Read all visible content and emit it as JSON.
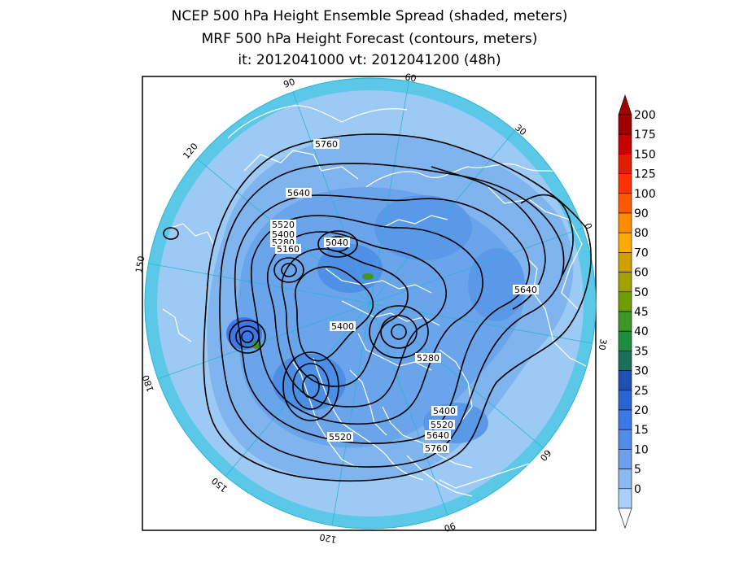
{
  "titles": {
    "line1": "NCEP 500 hPa Height Ensemble Spread (shaded, meters)",
    "line2": "MRF 500 hPa Height Forecast (contours, meters)",
    "line3": "it: 2012041000      vt: 2012041200 (48h)"
  },
  "longitude_labels": [
    "60",
    "30",
    "0",
    "30",
    "60",
    "90",
    "120",
    "150",
    "180",
    "150",
    "120",
    "90"
  ],
  "contour_labels": [
    "5760",
    "5640",
    "5520",
    "5400",
    "5280",
    "5160",
    "5040",
    "5640",
    "5400",
    "5280",
    "5400",
    "5520",
    "5640",
    "5760",
    "5520"
  ],
  "colorbar": {
    "labels": [
      "200",
      "175",
      "150",
      "125",
      "100",
      "90",
      "80",
      "70",
      "60",
      "50",
      "45",
      "40",
      "35",
      "30",
      "25",
      "20",
      "15",
      "10",
      "5",
      "0"
    ],
    "colors": [
      "#a00000",
      "#c80000",
      "#e01e00",
      "#ff3200",
      "#ff5a00",
      "#ff8c00",
      "#ffaa00",
      "#d0a000",
      "#a0a000",
      "#6e9e00",
      "#3c9628",
      "#1e8c3c",
      "#1a6e5a",
      "#1e50b4",
      "#2a64d2",
      "#3c78e6",
      "#508ce8",
      "#6ea0ee",
      "#8cb8f4",
      "#aad0fa"
    ]
  }
}
